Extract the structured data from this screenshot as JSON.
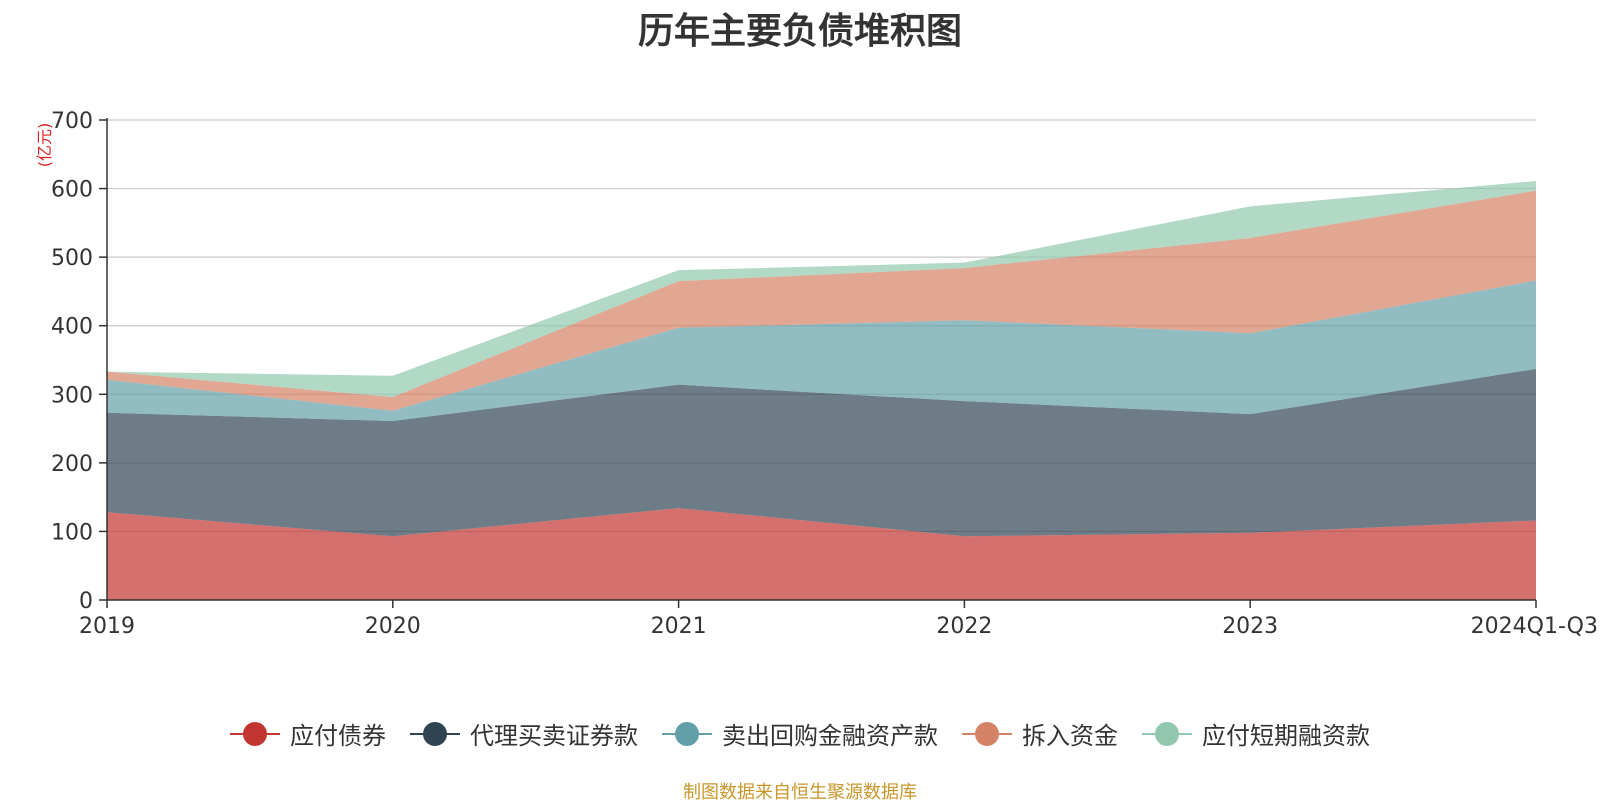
{
  "chart_data": {
    "type": "area",
    "stacked": true,
    "title": "历年主要负债堆积图",
    "unit_label": "(亿元)",
    "categories": [
      "2019",
      "2020",
      "2021",
      "2022",
      "2023",
      "2024Q1-Q3"
    ],
    "ylim": [
      0,
      700
    ],
    "yticks": [
      0,
      100,
      200,
      300,
      400,
      500,
      600,
      700
    ],
    "grid": true,
    "legend_position": "bottom",
    "series": [
      {
        "name": "应付债券",
        "color": "#c23531",
        "values": [
          128,
          93,
          134,
          93,
          98,
          116
        ]
      },
      {
        "name": "代理买卖证券款",
        "color": "#2f4554",
        "values": [
          145,
          168,
          180,
          197,
          173,
          221
        ]
      },
      {
        "name": "卖出回购金融资产款",
        "color": "#61a0a8",
        "values": [
          48,
          15,
          83,
          118,
          118,
          129
        ]
      },
      {
        "name": "拆入资金",
        "color": "#d48265",
        "values": [
          12,
          20,
          68,
          76,
          139,
          131
        ]
      },
      {
        "name": "应付短期融资款",
        "color": "#91c7ae",
        "values": [
          0,
          31,
          16,
          8,
          46,
          14
        ]
      }
    ]
  },
  "source_note": "制图数据来自恒生聚源数据库"
}
